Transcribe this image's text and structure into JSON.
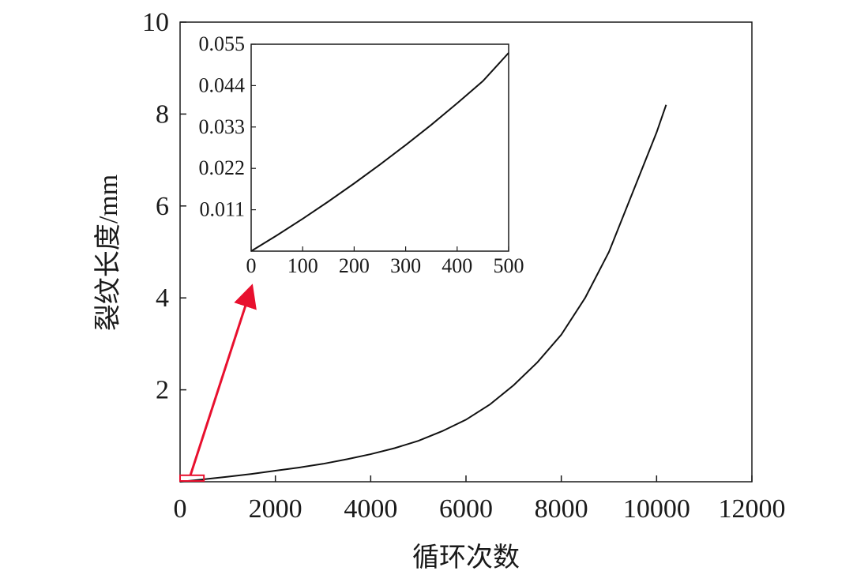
{
  "chart_data": {
    "type": "line",
    "xlabel": "循环次数",
    "ylabel": "裂纹长度/mm",
    "xlim": [
      0,
      12000
    ],
    "ylim": [
      0,
      10
    ],
    "x_ticks": [
      "0",
      "2000",
      "4000",
      "6000",
      "8000",
      "10000",
      "12000"
    ],
    "y_ticks": [
      "2",
      "4",
      "6",
      "8",
      "10"
    ],
    "grid": false,
    "series": [
      {
        "x": [
          0,
          500,
          1000,
          1500,
          2000,
          2500,
          3000,
          3500,
          4000,
          4500,
          5000,
          5500,
          6000,
          6500,
          7000,
          7500,
          8000,
          8500,
          9000,
          9500,
          10000,
          10200
        ],
        "y": [
          0.0,
          0.053,
          0.11,
          0.17,
          0.24,
          0.31,
          0.39,
          0.49,
          0.6,
          0.73,
          0.89,
          1.1,
          1.35,
          1.68,
          2.1,
          2.6,
          3.2,
          4.0,
          5.0,
          6.3,
          7.6,
          8.2
        ]
      }
    ],
    "highlight_region": {
      "x": [
        0,
        500
      ],
      "y": [
        0,
        0.055
      ],
      "color": "#e8102e"
    },
    "arrow_color": "#e8102e",
    "inset": {
      "xlim": [
        0,
        500
      ],
      "ylim": [
        0,
        0.055
      ],
      "x_ticks": [
        "0",
        "100",
        "200",
        "300",
        "400",
        "500"
      ],
      "y_ticks": [
        "0.011",
        "0.022",
        "0.033",
        "0.044",
        "0.055"
      ],
      "series": [
        {
          "x": [
            0,
            50,
            100,
            150,
            200,
            250,
            300,
            350,
            400,
            450,
            500
          ],
          "y": [
            0.0,
            0.0042,
            0.0086,
            0.0132,
            0.018,
            0.023,
            0.0282,
            0.0336,
            0.0393,
            0.0452,
            0.0527
          ]
        }
      ]
    }
  }
}
